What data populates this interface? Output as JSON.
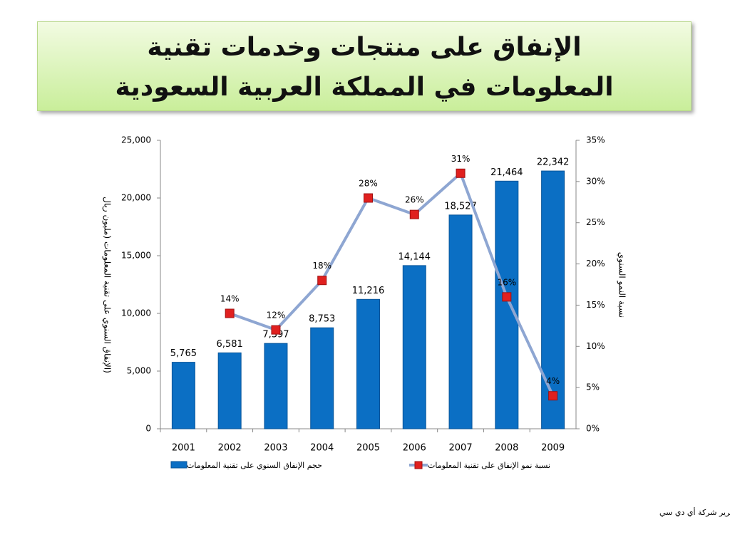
{
  "chart_data": {
    "type": "bar",
    "title": [
      "الإنفاق على منتجات وخدمات تقنية",
      "المعلومات في المملكة العربية السعودية"
    ],
    "categories": [
      "2001",
      "2002",
      "2003",
      "2004",
      "2005",
      "2006",
      "2007",
      "2008",
      "2009"
    ],
    "series": [
      {
        "name": "حجم الإنفاق السنوي على تقنية المعلومات",
        "type": "bar",
        "color": "#0b6fc4",
        "values": [
          5765,
          6581,
          7397,
          8753,
          11216,
          14144,
          18527,
          21464,
          22342
        ],
        "value_labels": [
          "5,765",
          "6,581",
          "7,397",
          "8,753",
          "11,216",
          "14,144",
          "18,527",
          "21,464",
          "22,342"
        ]
      },
      {
        "name": "نسبة نمو الإنفاق على تقنية المعلومات",
        "type": "line",
        "axis": "y2",
        "color": "#8ea6d2",
        "marker_color": "#e0201f",
        "values": [
          null,
          14,
          12,
          18,
          28,
          26,
          31,
          16,
          4
        ],
        "value_labels": [
          null,
          "14%",
          "12%",
          "18%",
          "28%",
          "26%",
          "31%",
          "16%",
          "4%"
        ]
      }
    ],
    "ylabel": "(الإنفاق السنوي على تقنية المعلومات (مليون ريال",
    "y2label": "نسبة النمو السنوي",
    "ylim": [
      0,
      25000
    ],
    "yticks": [
      0,
      {
        "value": 5000,
        "label": "5,000"
      },
      {
        "value": 10000,
        "label": "10,000"
      },
      {
        "value": 15000,
        "label": "15,000"
      },
      {
        "value": 20000,
        "label": "20,000"
      },
      {
        "value": 25000,
        "label": "25,000"
      }
    ],
    "y2lim": [
      0,
      35
    ],
    "y2ticks": [
      {
        "value": 0,
        "label": "0%"
      },
      {
        "value": 5,
        "label": "5%"
      },
      {
        "value": 10,
        "label": "10%"
      },
      {
        "value": 15,
        "label": "15%"
      },
      {
        "value": 20,
        "label": "20%"
      },
      {
        "value": 25,
        "label": "25%"
      },
      {
        "value": 30,
        "label": "30%"
      },
      {
        "value": 35,
        "label": "35%"
      }
    ],
    "grid": false,
    "legend": "bottom",
    "source": "المصدر: تقرير شركة أي دي سي"
  }
}
